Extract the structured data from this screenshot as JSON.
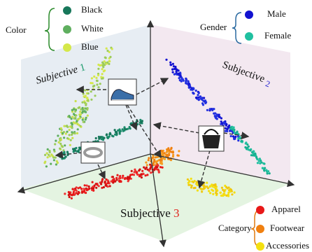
{
  "color_legend": {
    "title": "Color",
    "items": [
      "Black",
      "White",
      "Blue"
    ]
  },
  "gender_legend": {
    "title": "Gender",
    "items": [
      "Male",
      "Female"
    ]
  },
  "category_legend": {
    "title": "Category",
    "items": [
      "Apparel",
      "Footwear",
      "Accessories"
    ]
  },
  "subspaces": [
    {
      "label": "Subjective",
      "index": "1"
    },
    {
      "label": "Subjective",
      "index": "2"
    },
    {
      "label": "Subjective",
      "index": "3"
    }
  ]
}
